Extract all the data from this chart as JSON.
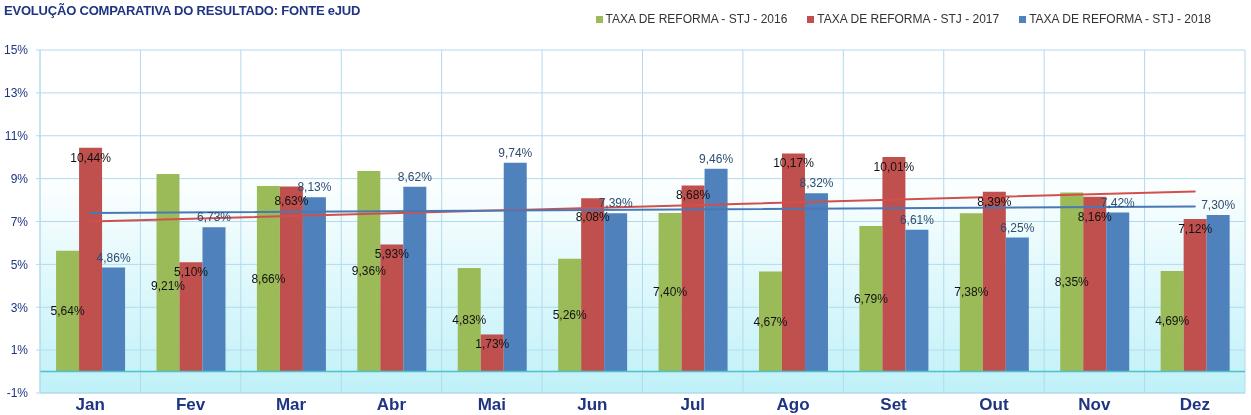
{
  "chart_data": {
    "type": "bar",
    "title": "EVOLUÇÃO COMPARATIVA DO RESULTADO: FONTE eJUD",
    "categories": [
      "Jan",
      "Fev",
      "Mar",
      "Abr",
      "Mai",
      "Jun",
      "Jul",
      "Ago",
      "Set",
      "Out",
      "Nov",
      "Dez"
    ],
    "series": [
      {
        "name": "TAXA DE REFORMA - STJ - 2016",
        "color": "#9bbb59",
        "values": [
          5.64,
          9.21,
          8.66,
          9.36,
          4.83,
          5.26,
          7.4,
          4.67,
          6.79,
          7.38,
          8.35,
          4.69
        ],
        "value_labels": [
          "5,64%",
          "9,21%",
          "8,66%",
          "9,36%",
          "4,83%",
          "5,26%",
          "7,40%",
          "4,67%",
          "6,79%",
          "7,38%",
          "8,35%",
          "4,69%"
        ]
      },
      {
        "name": "TAXA DE REFORMA - STJ - 2017",
        "color": "#c0504d",
        "values": [
          10.44,
          5.1,
          8.63,
          5.93,
          1.73,
          8.08,
          8.68,
          10.17,
          10.01,
          8.39,
          8.16,
          7.12
        ],
        "value_labels": [
          "10,44%",
          "5,10%",
          "8,63%",
          "5,93%",
          "1,73%",
          "8,08%",
          "8,68%",
          "10,17%",
          "10,01%",
          "8,39%",
          "8,16%",
          "7,12%"
        ]
      },
      {
        "name": "TAXA DE REFORMA - STJ - 2018",
        "color": "#4f81bd",
        "values": [
          4.86,
          6.73,
          8.13,
          8.62,
          9.74,
          7.39,
          9.46,
          8.32,
          6.61,
          6.25,
          7.42,
          7.3
        ],
        "value_labels": [
          "4,86%",
          "6,73%",
          "8,13%",
          "8,62%",
          "9,74%",
          "7,39%",
          "9,46%",
          "8,32%",
          "6,61%",
          "6,25%",
          "7,42%",
          "7,30%"
        ]
      },
      {
        "type": "line",
        "color": "#d2504c",
        "x": [
          "Jan",
          "Dez"
        ],
        "values": [
          7.0,
          8.4
        ]
      },
      {
        "type": "line",
        "color": "#4a78b4",
        "x": [
          "Jan",
          "Dez"
        ],
        "values": [
          7.4,
          7.7
        ]
      }
    ],
    "ylim": [
      -1,
      15
    ],
    "yticks": [
      {
        "value": -1,
        "label": "-1%"
      },
      {
        "value": 1,
        "label": "1%"
      },
      {
        "value": 3,
        "label": "3%"
      },
      {
        "value": 5,
        "label": "5%"
      },
      {
        "value": 7,
        "label": "7%"
      },
      {
        "value": 9,
        "label": "9%"
      },
      {
        "value": 11,
        "label": "11%"
      },
      {
        "value": 13,
        "label": "13%"
      },
      {
        "value": 15,
        "label": "15%"
      }
    ],
    "ref_lines": [
      {
        "axis": "y",
        "value": 0,
        "color": "#52bfca"
      }
    ],
    "grid": true,
    "legend": "top right"
  }
}
